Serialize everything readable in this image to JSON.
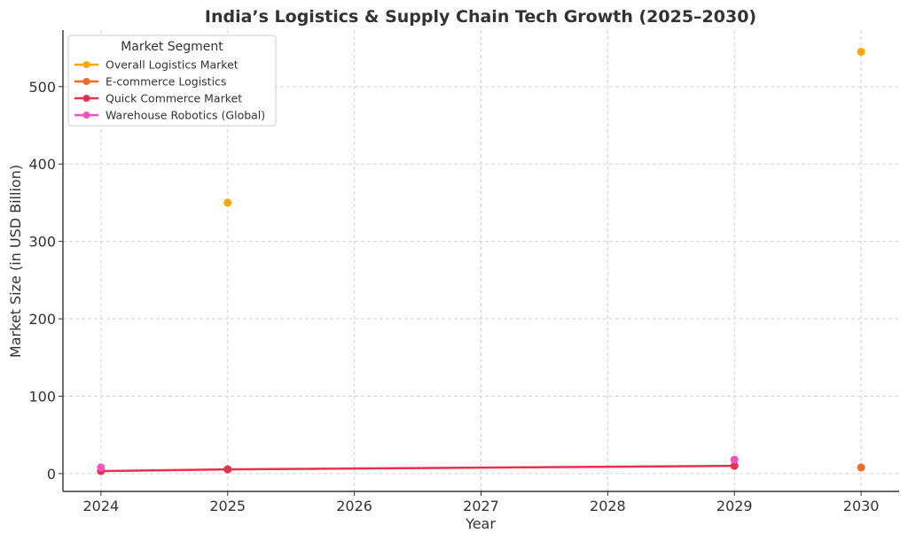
{
  "chart_data": {
    "type": "line",
    "title": "India’s Logistics & Supply Chain Tech Growth (2025–2030)",
    "xlabel": "Year",
    "ylabel": "Market Size (in USD Billion)",
    "x_ticks": [
      2024,
      2025,
      2026,
      2027,
      2028,
      2029,
      2030
    ],
    "y_ticks": [
      0,
      100,
      200,
      300,
      400,
      500
    ],
    "xlim": [
      2023.7,
      2030.3
    ],
    "ylim": [
      -23,
      573
    ],
    "grid": true,
    "legend": {
      "title": "Market Segment",
      "placement": "top-left"
    },
    "series": [
      {
        "name": "Overall Logistics Market",
        "color": "#FFA500",
        "points": [
          [
            2025,
            350
          ],
          [
            2030,
            545
          ]
        ],
        "connected": false
      },
      {
        "name": "E-commerce Logistics",
        "color": "#F26B2A",
        "points": [
          [
            2025,
            5.5
          ],
          [
            2030,
            8
          ]
        ],
        "connected": false
      },
      {
        "name": "Quick Commerce Market",
        "color": "#E8304F",
        "points": [
          [
            2024,
            3.3
          ],
          [
            2025,
            5.5
          ],
          [
            2029,
            10
          ]
        ],
        "connected": true
      },
      {
        "name": "Warehouse Robotics (Global)",
        "color": "#F752C0",
        "points": [
          [
            2024,
            8
          ],
          [
            2029,
            18
          ]
        ],
        "connected": false
      }
    ]
  }
}
